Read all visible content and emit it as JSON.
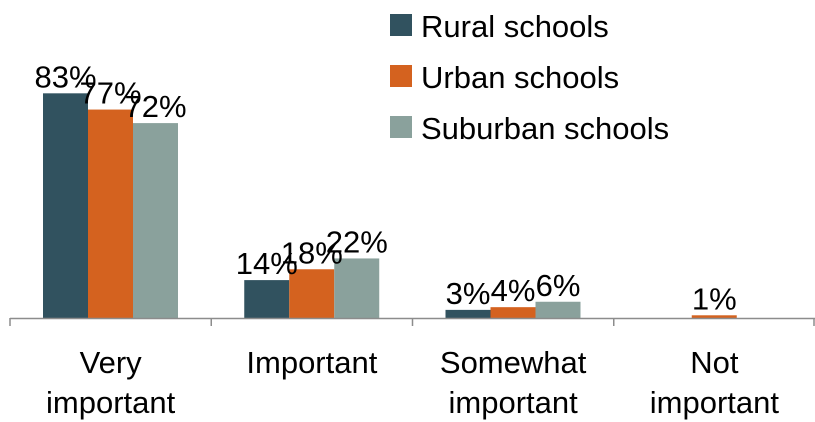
{
  "chart_data": {
    "type": "bar",
    "categories": [
      [
        "Very",
        "important"
      ],
      [
        "Important"
      ],
      [
        "Somewhat",
        "important"
      ],
      [
        "Not",
        "important"
      ]
    ],
    "series": [
      {
        "name": "Rural schools",
        "color": "#31525f",
        "values": [
          83,
          14,
          3,
          0
        ],
        "labels": [
          "83%",
          "14%",
          "3%",
          ""
        ]
      },
      {
        "name": "Urban schools",
        "color": "#d4621f",
        "values": [
          77,
          18,
          4,
          1
        ],
        "labels": [
          "77%",
          "18%",
          "4%",
          "1%"
        ]
      },
      {
        "name": "Suburban schools",
        "color": "#8aa19c",
        "values": [
          72,
          22,
          6,
          0
        ],
        "labels": [
          "72%",
          "22%",
          "6%",
          ""
        ]
      }
    ],
    "ylim": [
      0,
      100
    ],
    "legend_position": "top-right",
    "grid": false
  }
}
